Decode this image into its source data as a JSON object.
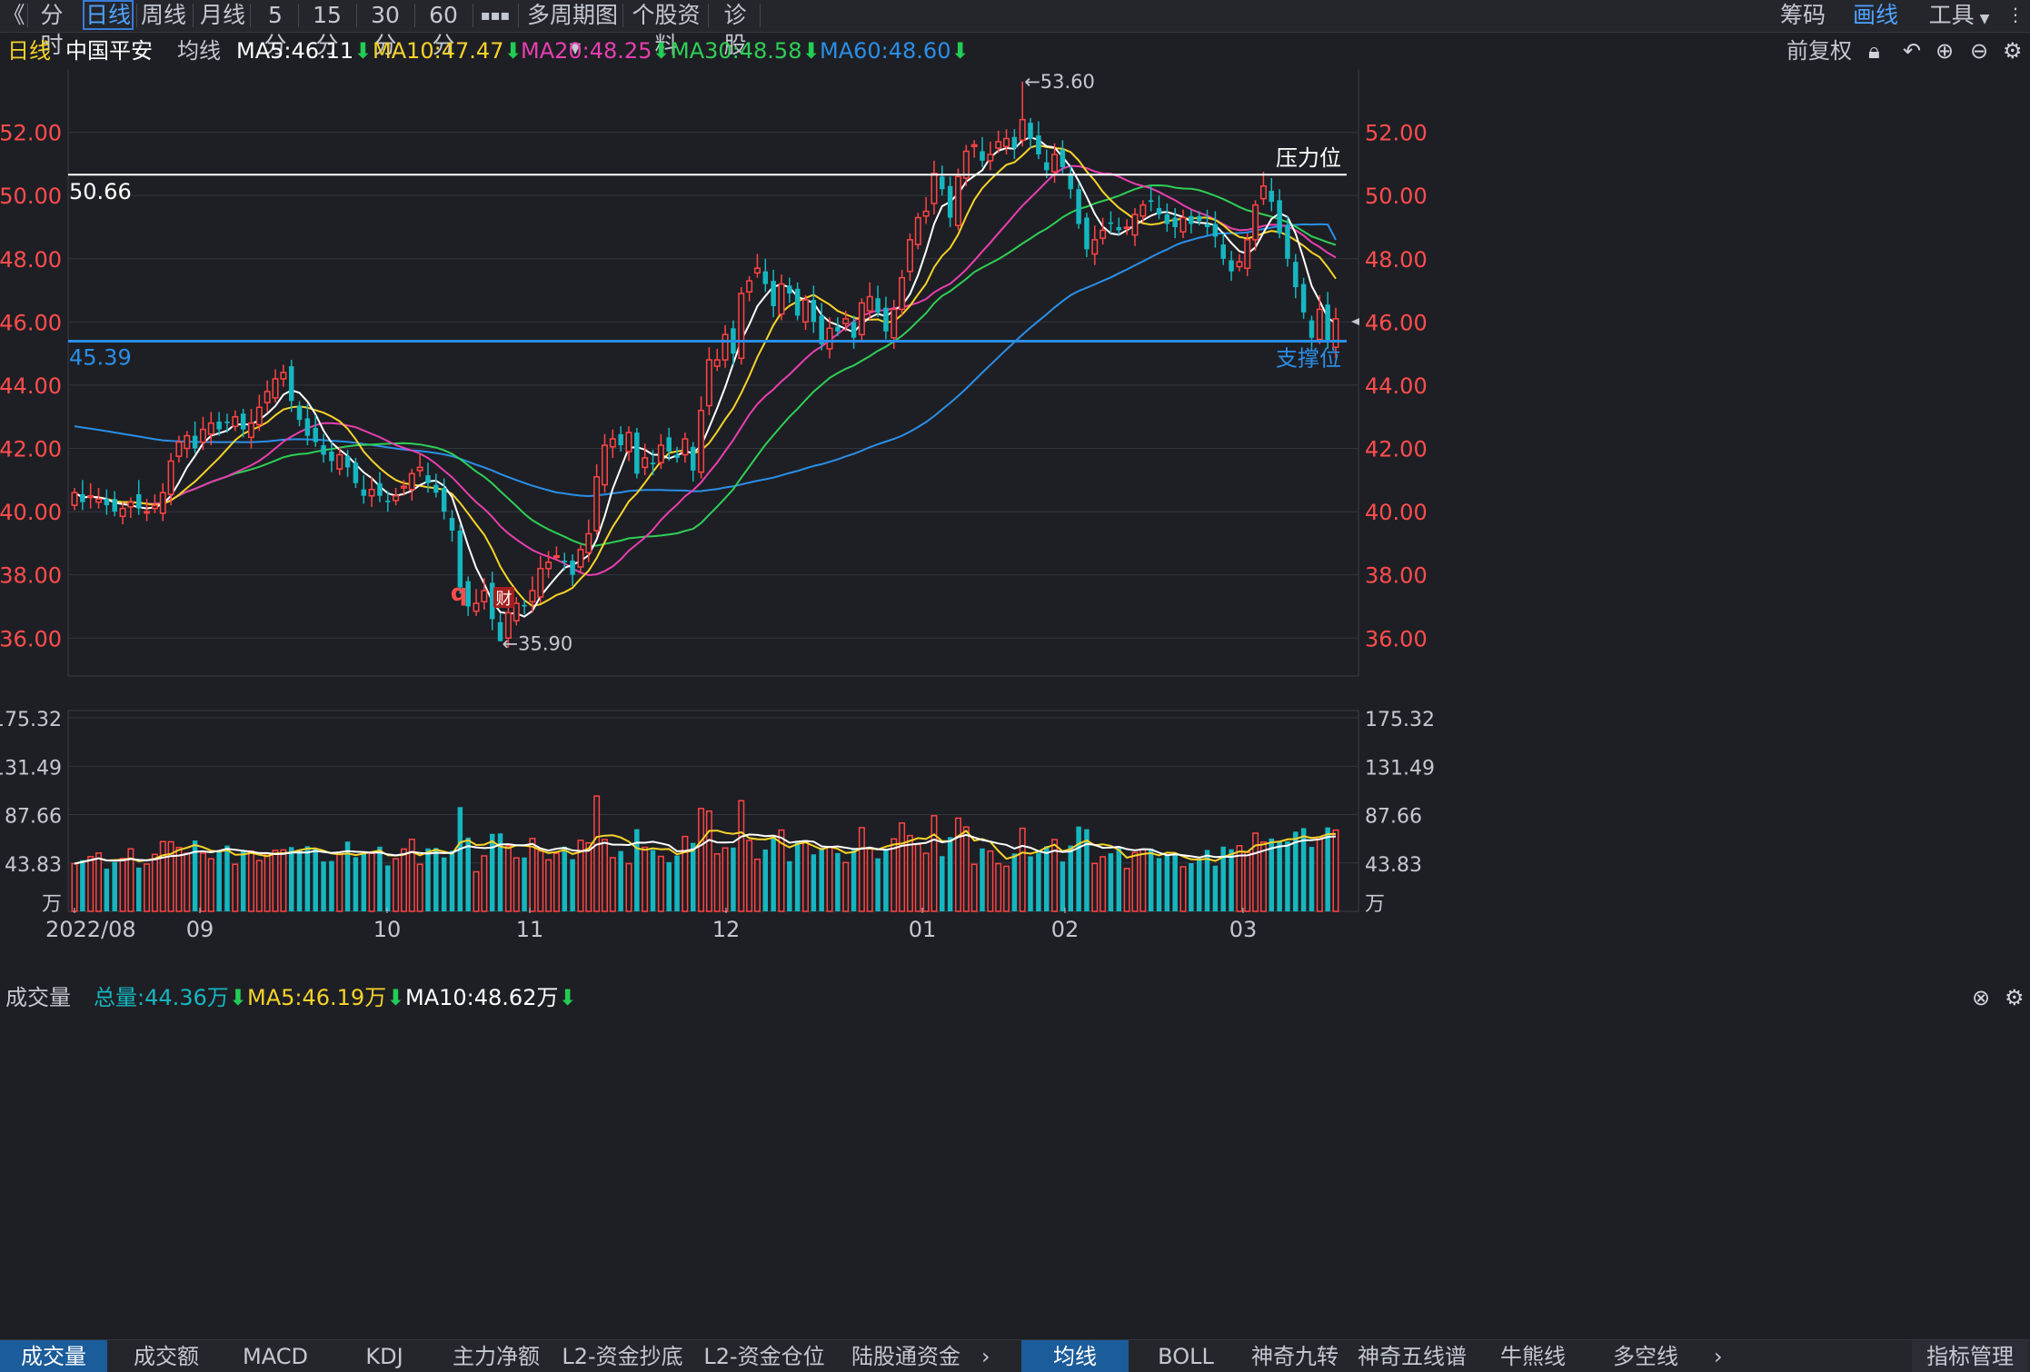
{
  "toolbar": {
    "back_label": "《",
    "periods": [
      "分时",
      "日线",
      "周线",
      "月线",
      "5分",
      "15分",
      "30分",
      "60分"
    ],
    "more_label": "▪▪▪",
    "multi_period_label": "多周期图",
    "stock_info_label": "个股资料",
    "diagnose_label": "诊股",
    "chips_label": "筹码",
    "draw_label": "画线",
    "tools_label": "工具"
  },
  "info": {
    "period": "日线",
    "stock_name": "中国平安",
    "ma_label": "均线",
    "ma5": "MA5:46.11",
    "ma10": "MA10:47.47",
    "ma20": "MA20:48.25",
    "ma30": "MA30:48.58",
    "ma60": "MA60:48.60",
    "arrow": "⬇",
    "adjust_label": "前复权"
  },
  "volume_info": {
    "title": "成交量",
    "total": "总量:44.36万",
    "ma5": "MA5:46.19万",
    "ma10": "MA10:48.62万",
    "arrow": "⬇"
  },
  "bottom_tabs": [
    "成交量",
    "成交额",
    "MACD",
    "KDJ",
    "主力净额",
    "L2-资金抄底",
    "L2-资金仓位",
    "陆股通资金"
  ],
  "bottom_tabs2": [
    "均线",
    "BOLL",
    "神奇九转",
    "神奇五线谱",
    "牛熊线",
    "多空线"
  ],
  "bottom_right_label": "指标管理",
  "colors": {
    "up": "#ff4444",
    "down": "#16b6c0",
    "ma5": "#ffffff",
    "ma10": "#f6d32a",
    "ma20": "#e83fb0",
    "ma30": "#2fcf56",
    "ma60": "#2a8fe8",
    "resistance": "#ffffff",
    "support": "#2a8fe8"
  },
  "chart_data": [
    {
      "type": "candlestick",
      "title": "中国平安 日线",
      "ylim": [
        34.8,
        54.0
      ],
      "y_ticks": [
        "52.00",
        "50.00",
        "48.00",
        "46.00",
        "44.00",
        "42.00",
        "40.00",
        "38.00",
        "36.00"
      ],
      "x_tick_labels": [
        "2022/08",
        "09",
        "10",
        "11",
        "12",
        "01",
        "02",
        "03"
      ],
      "high_annotation": "←53.60",
      "low_annotation": "←35.90",
      "resistance": {
        "value": 50.66,
        "label": "50.66",
        "name": "压力位"
      },
      "support": {
        "value": 45.39,
        "label": "45.39",
        "name": "支撑位"
      },
      "event_marks": [
        "q",
        "财"
      ],
      "closes": [
        40.6,
        40.3,
        40.5,
        40.4,
        40.2,
        40.0,
        40.1,
        40.3,
        40.1,
        40.0,
        40.2,
        40.6,
        41.6,
        42.2,
        42.4,
        42.0,
        42.6,
        42.8,
        42.6,
        42.8,
        43.0,
        42.6,
        42.8,
        43.3,
        43.8,
        44.2,
        44.4,
        43.5,
        42.9,
        42.4,
        42.2,
        41.8,
        41.6,
        41.8,
        41.4,
        40.9,
        40.5,
        40.7,
        40.5,
        40.3,
        40.5,
        40.8,
        41.2,
        41.4,
        40.9,
        40.6,
        40.0,
        39.4,
        37.6,
        37.0,
        37.1,
        37.5,
        36.6,
        35.9,
        36.8,
        37.1,
        37.0,
        37.5,
        38.2,
        38.4,
        38.6,
        38.4,
        38.0,
        38.8,
        39.3,
        41.1,
        42.1,
        42.3,
        42.1,
        42.5,
        41.2,
        41.7,
        41.5,
        42.1,
        41.9,
        41.7,
        42.3,
        41.3,
        43.2,
        44.8,
        44.8,
        45.6,
        45.0,
        46.9,
        47.3,
        47.7,
        47.2,
        46.5,
        47.2,
        46.9,
        46.2,
        46.7,
        46.0,
        45.3,
        45.8,
        45.7,
        46.1,
        45.5,
        46.6,
        46.8,
        46.3,
        45.7,
        46.4,
        47.4,
        48.6,
        49.3,
        49.5,
        50.7,
        50.2,
        49.3,
        50.6,
        51.4,
        51.6,
        51.1,
        51.3,
        51.7,
        51.8,
        51.5,
        52.4,
        51.8,
        51.3,
        50.8,
        51.3,
        50.9,
        50.2,
        49.1,
        48.3,
        48.6,
        48.9,
        49.1,
        48.9,
        49.0,
        49.4,
        49.7,
        49.8,
        49.4,
        49.1,
        49.0,
        49.3,
        49.1,
        49.2,
        49.0,
        48.7,
        48.0,
        47.6,
        47.9,
        48.6,
        49.7,
        50.3,
        49.8,
        48.8,
        48.0,
        47.1,
        46.3,
        45.5,
        46.4,
        45.4,
        46.1
      ],
      "ma60_endpoints": [
        42.7,
        48.6
      ]
    },
    {
      "type": "bar",
      "title": "成交量",
      "unit": "万",
      "ylim": [
        0,
        175.32
      ],
      "y_ticks": [
        "175.32",
        "131.49",
        "87.66",
        "43.83",
        "万"
      ],
      "ma5_value": "46.19万",
      "ma10_value": "48.62万",
      "last_total": "44.36万"
    }
  ]
}
